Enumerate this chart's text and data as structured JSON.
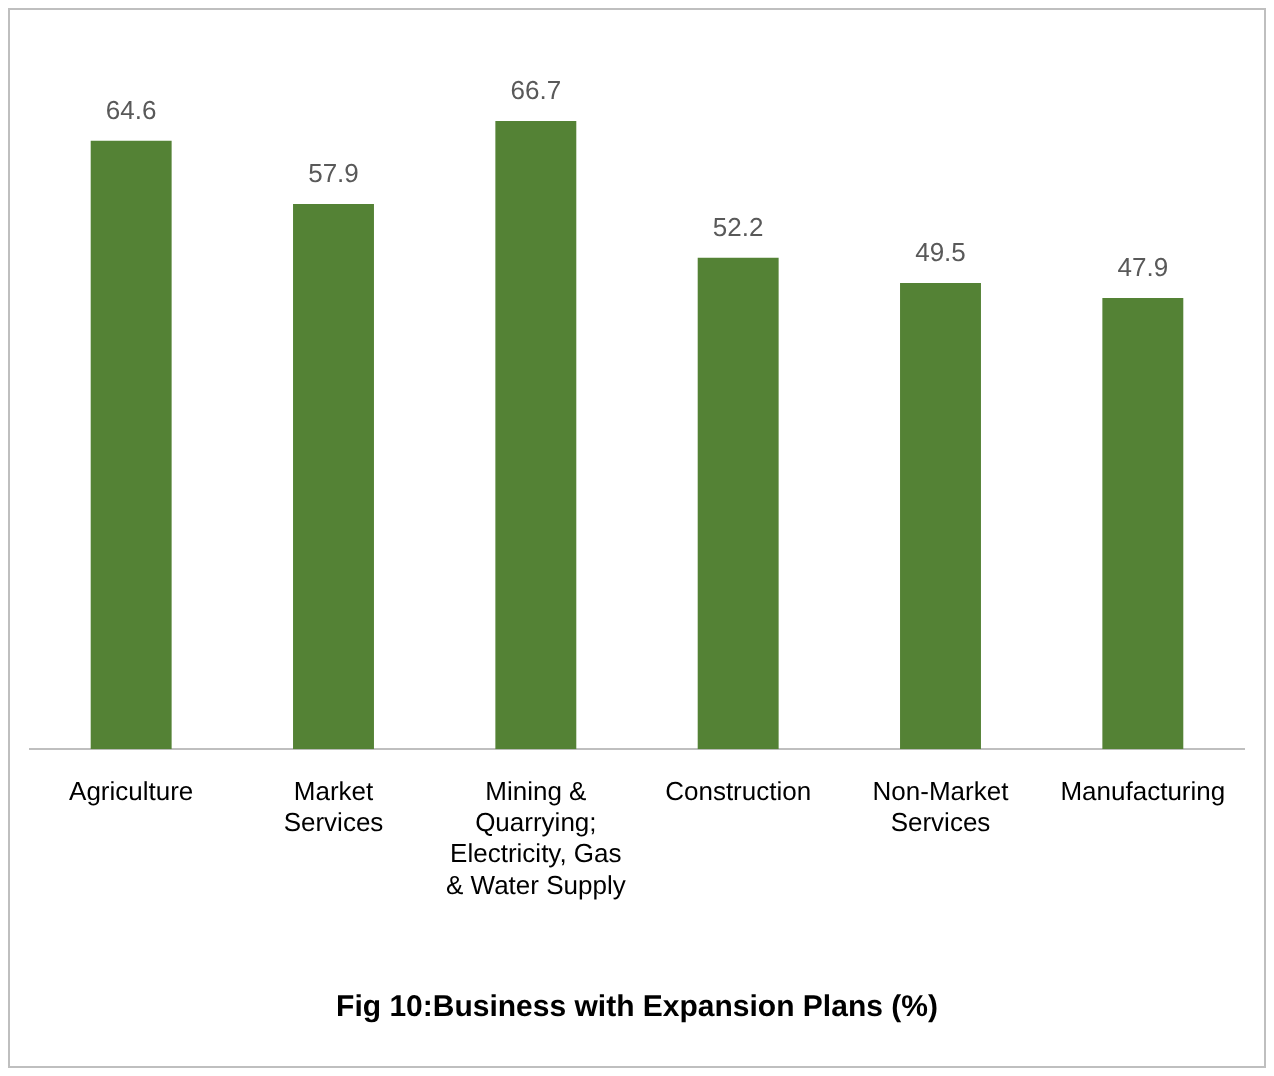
{
  "chart_data": {
    "type": "bar",
    "title": "Fig 10:Business with Expansion Plans (%)",
    "categories": [
      "Agriculture",
      "Market Services",
      "Mining & Quarrying; Electricity, Gas & Water Supply",
      "Construction",
      "Non-Market Services",
      "Manufacturing"
    ],
    "values": [
      64.6,
      57.9,
      66.7,
      52.2,
      49.5,
      47.9
    ],
    "color": "#548235",
    "data_labels": true,
    "grid": false,
    "legend": false
  }
}
